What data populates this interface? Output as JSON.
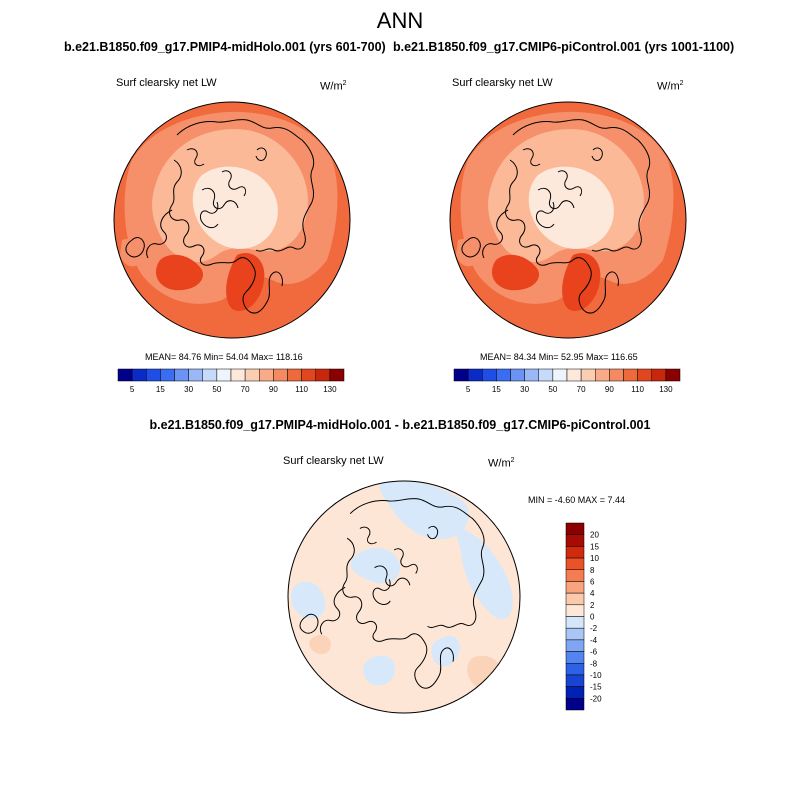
{
  "page_title": "ANN",
  "panels": [
    {
      "case_title": "b.e21.B1850.f09_g17.PMIP4-midHolo.001 (yrs 601-700)",
      "variable_label": "Surf clearsky net LW",
      "units_base": "W/m",
      "units_exp": "2",
      "stats": "MEAN=  84.76  Min=  54.04  Max= 118.16"
    },
    {
      "case_title": "b.e21.B1850.f09_g17.CMIP6-piControl.001 (yrs 1001-1100)",
      "variable_label": "Surf clearsky net LW",
      "units_base": "W/m",
      "units_exp": "2",
      "stats": "MEAN=  84.34  Min=  52.95  Max= 116.65"
    }
  ],
  "colorbar_top": {
    "colors": [
      "#00008b",
      "#0a2bc8",
      "#1f4ee6",
      "#3a6ef2",
      "#6a93f5",
      "#9ab8f8",
      "#c7daf9",
      "#eef4fb",
      "#fde9dc",
      "#fbcdb1",
      "#f8ab86",
      "#f48a5f",
      "#ee6a3d",
      "#e2461f",
      "#c8260d",
      "#8b0000"
    ],
    "tick_labels": [
      "5",
      "15",
      "30",
      "50",
      "70",
      "90",
      "110",
      "130"
    ]
  },
  "diff": {
    "title": "b.e21.B1850.f09_g17.PMIP4-midHolo.001 - b.e21.B1850.f09_g17.CMIP6-piControl.001",
    "variable_label": "Surf clearsky net LW",
    "units_base": "W/m",
    "units_exp": "2",
    "stats": "MIN =  -4.60 MAX =   7.44"
  },
  "colorbar_diff": {
    "colors": [
      "#00008b",
      "#0022b4",
      "#1744d2",
      "#2e62e6",
      "#5484ef",
      "#7fa6f3",
      "#a9c6f6",
      "#d4e6fa",
      "#fde8d8",
      "#fbc9ab",
      "#f8a47d",
      "#f47c50",
      "#ea5228",
      "#d12b0e",
      "#a80b03",
      "#8b0000"
    ],
    "tick_labels": [
      "20",
      "15",
      "10",
      "8",
      "6",
      "4",
      "2",
      "0",
      "-2",
      "-4",
      "-6",
      "-8",
      "-10",
      "-15",
      "-20"
    ]
  },
  "map_colors": {
    "ocean_deep": "#f16a3e",
    "ocean_mid": "#f6906a",
    "land": "#fbb998",
    "pole": "#fde9dc",
    "hot": "#e8431c",
    "diff_pos": "#fde6d6",
    "diff_neg": "#d6e8fa",
    "diff_pos2": "#fbd3b9"
  }
}
